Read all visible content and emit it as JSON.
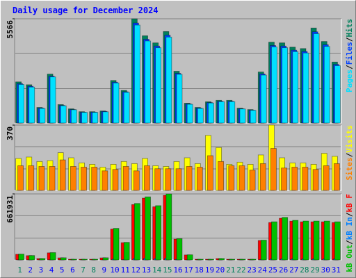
{
  "chart_data": [
    {
      "type": "bar",
      "title": "Daily usage for December 2024",
      "legend_separator": "/",
      "ylim": [
        0,
        5566
      ],
      "yticks": [
        5566
      ],
      "series": [
        {
          "name": "Hits",
          "color": "#00805c",
          "values": [
            2196,
            2045,
            833,
            2613,
            985,
            757,
            606,
            606,
            644,
            2272,
            1742,
            5566,
            4657,
            4279,
            4885,
            2764,
            1060,
            833,
            1136,
            1212,
            1212,
            795,
            719,
            2726,
            4317,
            4279,
            4051,
            3976,
            5074,
            4354,
            3256
          ]
        },
        {
          "name": "Files",
          "color": "#0040ff",
          "values": [
            2100,
            1960,
            800,
            2500,
            940,
            720,
            580,
            580,
            620,
            2180,
            1670,
            5340,
            4470,
            4110,
            4690,
            2650,
            1020,
            800,
            1090,
            1160,
            1160,
            760,
            690,
            2620,
            4140,
            4110,
            3890,
            3820,
            4870,
            4180,
            3130
          ]
        },
        {
          "name": "Pages",
          "color": "#00e0ff",
          "values": [
            2060,
            1920,
            780,
            2460,
            920,
            710,
            570,
            570,
            600,
            2140,
            1640,
            5230,
            4380,
            4020,
            4590,
            2600,
            1000,
            780,
            1070,
            1140,
            1140,
            750,
            680,
            2560,
            4060,
            4020,
            3810,
            3740,
            4770,
            4090,
            3060
          ]
        }
      ]
    },
    {
      "type": "bar",
      "legend_separator": "/",
      "ylim": [
        0,
        370
      ],
      "yticks": [
        370
      ],
      "series": [
        {
          "name": "Visits",
          "color": "#ffff00",
          "values": [
            181,
            189,
            164,
            169,
            214,
            185,
            156,
            148,
            132,
            148,
            164,
            152,
            181,
            140,
            136,
            164,
            185,
            152,
            312,
            243,
            148,
            160,
            148,
            201,
            370,
            185,
            156,
            156,
            148,
            210,
            193
          ]
        },
        {
          "name": "Sites",
          "color": "#ff8000",
          "values": [
            140,
            140,
            136,
            136,
            173,
            136,
            132,
            132,
            111,
            119,
            136,
            111,
            140,
            123,
            123,
            123,
            136,
            132,
            197,
            164,
            140,
            140,
            115,
            152,
            238,
            127,
            132,
            132,
            119,
            140,
            152
          ]
        }
      ]
    },
    {
      "type": "bar",
      "legend_separator": "/",
      "ylim": [
        0,
        661931
      ],
      "yticks": [
        661931
      ],
      "categories": [
        "1",
        "2",
        "3",
        "4",
        "5",
        "6",
        "7",
        "8",
        "9",
        "10",
        "11",
        "12",
        "13",
        "14",
        "15",
        "16",
        "17",
        "18",
        "19",
        "20",
        "21",
        "22",
        "23",
        "24",
        "25",
        "26",
        "27",
        "28",
        "29",
        "30",
        "31"
      ],
      "weekend": [
        true,
        false,
        false,
        false,
        false,
        false,
        true,
        true,
        false,
        false,
        false,
        false,
        false,
        true,
        true,
        false,
        false,
        false,
        false,
        false,
        true,
        true,
        false,
        false,
        false,
        false,
        false,
        true,
        true,
        false,
        false
      ],
      "weekend_color": "#00805c",
      "series": [
        {
          "name": "kB F",
          "color": "#ff0000",
          "values": [
            57000,
            43000,
            14000,
            71000,
            21000,
            7000,
            7000,
            7000,
            21000,
            310000,
            173000,
            555000,
            620000,
            533000,
            648000,
            209000,
            50000,
            7000,
            7000,
            14000,
            7000,
            7000,
            7000,
            195000,
            375000,
            418000,
            389000,
            382000,
            382000,
            382000,
            375000
          ]
        },
        {
          "name": "kB In",
          "color": "#0080ff",
          "values": [
            1500,
            1200,
            400,
            1800,
            600,
            200,
            200,
            200,
            600,
            8000,
            4500,
            14000,
            16000,
            14000,
            17000,
            5500,
            1300,
            200,
            200,
            400,
            200,
            200,
            200,
            5000,
            9800,
            11000,
            10000,
            10000,
            10000,
            10000,
            9800
          ]
        },
        {
          "name": "kB Out",
          "color": "#00c000",
          "values": [
            58840,
            44130,
            14710,
            73550,
            22065,
            7355,
            7355,
            7355,
            22065,
            316265,
            176520,
            566335,
            632530,
            544270,
            661931,
            213295,
            51485,
            7355,
            7355,
            14710,
            7355,
            7355,
            7355,
            198585,
            382460,
            426590,
            397170,
            389815,
            389815,
            389815,
            382460
          ]
        }
      ]
    }
  ]
}
